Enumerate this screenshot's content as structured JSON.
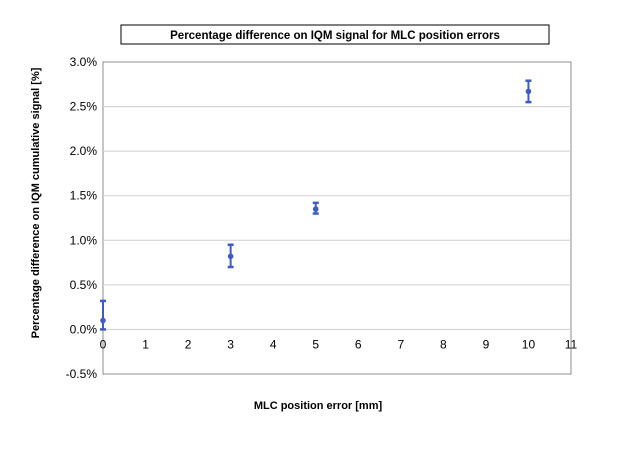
{
  "chart_data": {
    "type": "scatter",
    "title": "Percentage difference on IQM signal for MLC position errors",
    "xlabel": "MLC position error [mm]",
    "ylabel": "Percentage difference on IQM cumulative signal [%]",
    "xlim": [
      0,
      11
    ],
    "ylim": [
      -0.5,
      3.0
    ],
    "x_ticks": [
      "0",
      "1",
      "2",
      "3",
      "4",
      "5",
      "6",
      "7",
      "8",
      "9",
      "10",
      "11"
    ],
    "y_ticks": [
      "-0.5%",
      "0.0%",
      "0.5%",
      "1.0%",
      "1.5%",
      "2.0%",
      "2.5%",
      "3.0%"
    ],
    "grid": "horizontal",
    "color": "#3e5cc4",
    "points": [
      {
        "x": 0,
        "y": 0.1,
        "err_low": 0.0,
        "err_high": 0.32
      },
      {
        "x": 3,
        "y": 0.82,
        "err_low": 0.7,
        "err_high": 0.95
      },
      {
        "x": 5,
        "y": 1.35,
        "err_low": 1.3,
        "err_high": 1.42
      },
      {
        "x": 10,
        "y": 2.67,
        "err_low": 2.55,
        "err_high": 2.79
      }
    ]
  }
}
